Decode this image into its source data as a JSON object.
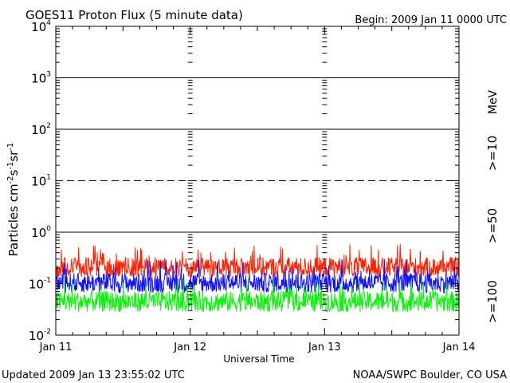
{
  "header": {
    "title": "GOES11 Proton Flux (5 minute data)",
    "begin": "Begin: 2009 Jan 11 0000 UTC"
  },
  "footer": {
    "updated": "Updated 2009 Jan 13 23:55:02 UTC",
    "credit": "NOAA/SWPC Boulder, CO USA"
  },
  "chart_data": {
    "type": "line",
    "title": "GOES11 Proton Flux (5 minute data)",
    "xlabel": "Universal Time",
    "ylabel_parts": [
      "Particles cm",
      "-2",
      "s",
      "-1",
      "sr",
      "-1"
    ],
    "yscale": "log",
    "ylim": [
      0.01,
      10000
    ],
    "xlim": [
      0,
      3
    ],
    "x_ticks": [
      {
        "x": 0,
        "label": "Jan 11"
      },
      {
        "x": 1,
        "label": "Jan 12"
      },
      {
        "x": 2,
        "label": "Jan 13"
      },
      {
        "x": 3,
        "label": "Jan 14"
      }
    ],
    "y_ticks": [
      {
        "base": "10",
        "exp": "-2",
        "value": 0.01
      },
      {
        "base": "10",
        "exp": "-1",
        "value": 0.1
      },
      {
        "base": "10",
        "exp": "0",
        "value": 1
      },
      {
        "base": "10",
        "exp": "1",
        "value": 10
      },
      {
        "base": "10",
        "exp": "2",
        "value": 100
      },
      {
        "base": "10",
        "exp": "3",
        "value": 1000
      },
      {
        "base": "10",
        "exp": "4",
        "value": 10000
      }
    ],
    "reference_lines": [
      {
        "value": 1000,
        "style": "solid"
      },
      {
        "value": 100,
        "style": "solid"
      },
      {
        "value": 10,
        "style": "dashed"
      },
      {
        "value": 1,
        "style": "solid"
      }
    ],
    "legend_unit": "MeV",
    "series": [
      {
        "name": ">=10",
        "color": "#ff2000",
        "typical": 0.2,
        "low": 0.12,
        "high": 0.6
      },
      {
        "name": ">=50",
        "color": "#1010ff",
        "typical": 0.1,
        "low": 0.06,
        "high": 0.3
      },
      {
        "name": ">=100",
        "color": "#10f010",
        "typical": 0.045,
        "low": 0.025,
        "high": 0.12
      }
    ],
    "grid": false
  }
}
